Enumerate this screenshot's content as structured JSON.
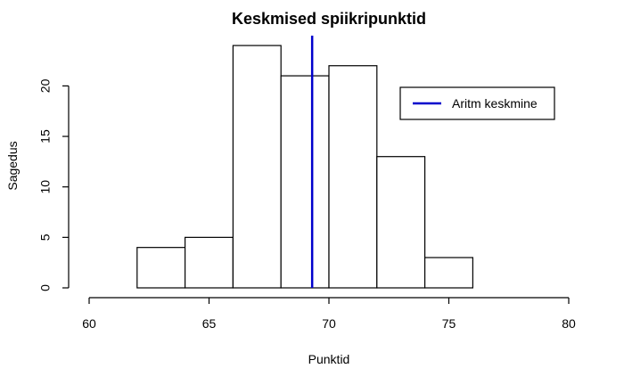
{
  "chart_data": {
    "type": "bar",
    "title": "Keskmised spiikripunktid",
    "xlabel": "Punktid",
    "ylabel": "Sagedus",
    "xlim": [
      60,
      80
    ],
    "ylim": [
      0,
      24
    ],
    "x_ticks": [
      60,
      65,
      70,
      75,
      80
    ],
    "y_ticks": [
      0,
      5,
      10,
      15,
      20
    ],
    "bins": [
      {
        "start": 62,
        "end": 64,
        "count": 4
      },
      {
        "start": 64,
        "end": 66,
        "count": 5
      },
      {
        "start": 66,
        "end": 68,
        "count": 24
      },
      {
        "start": 68,
        "end": 70,
        "count": 21
      },
      {
        "start": 70,
        "end": 72,
        "count": 22
      },
      {
        "start": 72,
        "end": 74,
        "count": 13
      },
      {
        "start": 74,
        "end": 76,
        "count": 3
      }
    ],
    "mean_line": {
      "value": 69.3,
      "label": "Aritm keskmine",
      "color": "#0000cc"
    },
    "legend": {
      "position": "top-right"
    },
    "grid": false
  }
}
